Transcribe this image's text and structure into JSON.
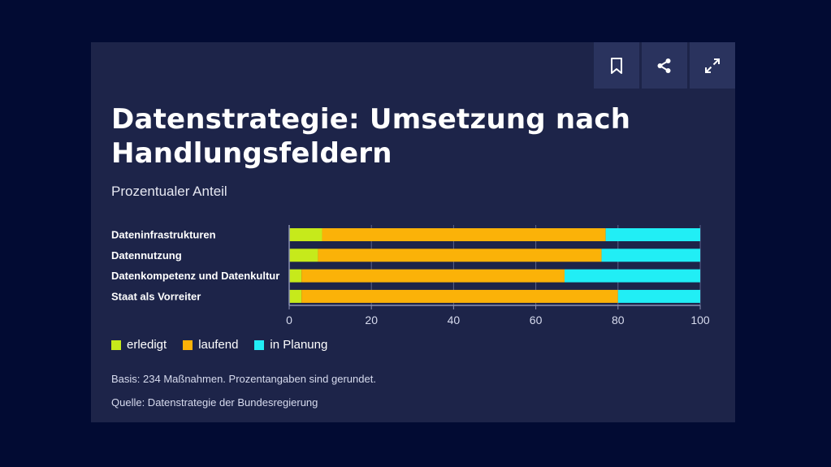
{
  "colors": {
    "erledigt": "#c6ea1b",
    "laufend": "#fbb208",
    "in_planung": "#21eef5"
  },
  "toolbar": {
    "bookmark_icon": "bookmark-icon",
    "share_icon": "share-icon",
    "fullscreen_icon": "fullscreen-icon"
  },
  "chart_data": {
    "type": "bar",
    "orientation": "horizontal",
    "stacked": true,
    "title": "Datenstrategie: Umsetzung nach Handlungsfeldern",
    "subtitle": "Prozentualer Anteil",
    "categories": [
      "Dateninfrastrukturen",
      "Datennutzung",
      "Datenkompetenz und Datenkultur",
      "Staat als Vorreiter"
    ],
    "series": [
      {
        "name": "erledigt",
        "values": [
          8,
          7,
          3,
          3
        ]
      },
      {
        "name": "laufend",
        "values": [
          69,
          69,
          64,
          77
        ]
      },
      {
        "name": "in Planung",
        "values": [
          23,
          24,
          33,
          20
        ]
      }
    ],
    "xlim": [
      0,
      100
    ],
    "xticks": [
      "0",
      "20",
      "40",
      "60",
      "80",
      "100"
    ],
    "grid": true,
    "legend_placement": "bottom-left"
  },
  "notes": {
    "basis": "Basis: 234 Maßnahmen. Prozentangaben sind gerundet.",
    "source": "Quelle: Datenstrategie der Bundesregierung"
  }
}
